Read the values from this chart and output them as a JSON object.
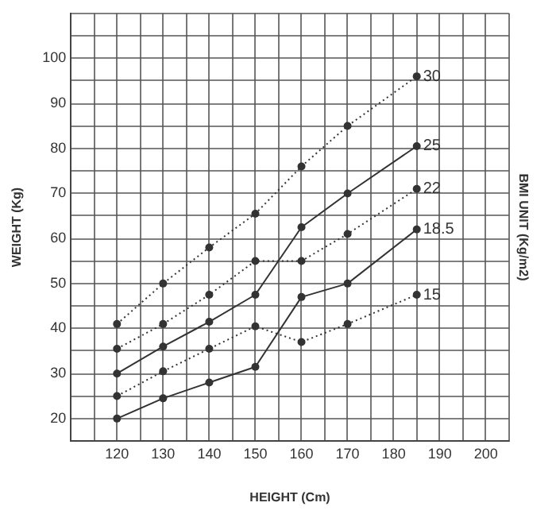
{
  "chart_data": {
    "type": "line",
    "xlabel": "HEIGHT (Cm)",
    "ylabel": "WEIGHT (Kg)",
    "y2label": "BMI UNIT (Kg/m2)",
    "x": [
      120,
      130,
      140,
      150,
      160,
      170,
      185
    ],
    "series": [
      {
        "name": "30",
        "color": "#333333",
        "line_style": "dotted",
        "values": [
          41,
          50,
          58,
          65.5,
          76,
          85,
          96
        ]
      },
      {
        "name": "25",
        "color": "#333333",
        "line_style": "solid",
        "values": [
          30,
          36,
          41.5,
          47.5,
          62.5,
          70,
          80.5
        ]
      },
      {
        "name": "22",
        "color": "#333333",
        "line_style": "dotted",
        "values": [
          35.5,
          41,
          47.5,
          55,
          55,
          61,
          71
        ]
      },
      {
        "name": "18.5",
        "color": "#333333",
        "line_style": "solid",
        "values": [
          20,
          24.5,
          28,
          31.5,
          47,
          50,
          62
        ]
      },
      {
        "name": "15",
        "color": "#333333",
        "line_style": "dotted",
        "values": [
          25,
          30.5,
          35.5,
          40.5,
          37,
          41,
          47.5
        ]
      }
    ],
    "xlim": [
      110,
      205
    ],
    "xticks": [
      {
        "value": 110,
        "label": null
      },
      {
        "value": 115,
        "label": null
      },
      120,
      {
        "value": 125,
        "label": null
      },
      130,
      {
        "value": 135,
        "label": null
      },
      140,
      {
        "value": 145,
        "label": null
      },
      150,
      {
        "value": 155,
        "label": null
      },
      160,
      {
        "value": 165,
        "label": null
      },
      170,
      {
        "value": 175,
        "label": null
      },
      180,
      {
        "value": 185,
        "label": null
      },
      190,
      {
        "value": 195,
        "label": null
      },
      200,
      {
        "value": 205,
        "label": null
      }
    ],
    "ylim": [
      15,
      110
    ],
    "yticks": [
      {
        "value": 15,
        "label": null
      },
      20,
      {
        "value": 25,
        "label": null
      },
      30,
      {
        "value": 35,
        "label": null
      },
      40,
      {
        "value": 45,
        "label": null
      },
      50,
      {
        "value": 55,
        "label": null
      },
      60,
      {
        "value": 65,
        "label": null
      },
      70,
      {
        "value": 75,
        "label": null
      },
      80,
      {
        "value": 85,
        "label": null
      },
      90,
      {
        "value": 95,
        "label": null
      },
      100,
      {
        "value": 105,
        "label": null
      },
      {
        "value": 110,
        "label": null
      }
    ],
    "grid": true,
    "legend": false,
    "marker": "circle"
  }
}
